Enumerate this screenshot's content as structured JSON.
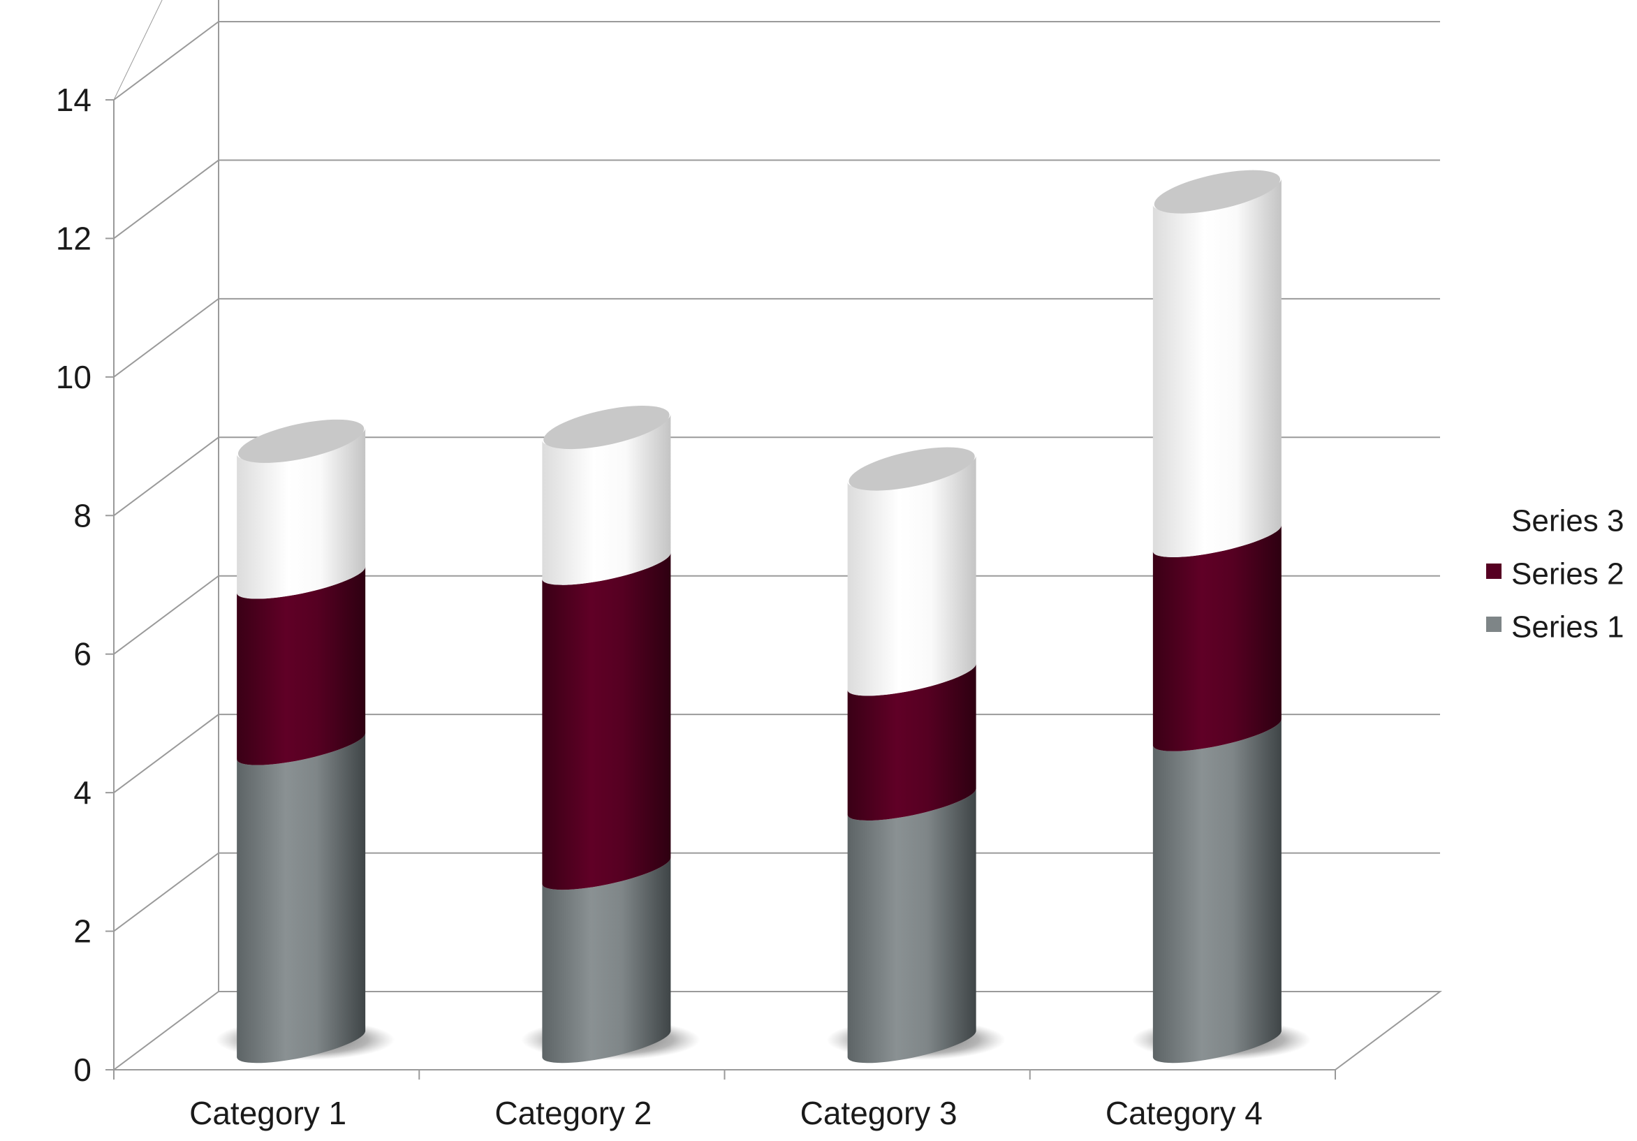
{
  "chart_data": {
    "type": "bar",
    "stacked": true,
    "style": "3d-cylinder",
    "categories": [
      "Category 1",
      "Category 2",
      "Category 3",
      "Category 4"
    ],
    "series": [
      {
        "name": "Series 1",
        "values": [
          4.3,
          2.5,
          3.5,
          4.5
        ],
        "color": "#7e8587"
      },
      {
        "name": "Series 2",
        "values": [
          2.4,
          4.4,
          1.8,
          2.8
        ],
        "color": "#560022"
      },
      {
        "name": "Series 3",
        "values": [
          2.0,
          2.0,
          3.0,
          5.0
        ],
        "color": "#ffffff"
      }
    ],
    "yticks": [
      "0",
      "2",
      "4",
      "6",
      "8",
      "10",
      "12",
      "14"
    ],
    "ylim": [
      0,
      14
    ],
    "grid": true,
    "legend": "right"
  }
}
